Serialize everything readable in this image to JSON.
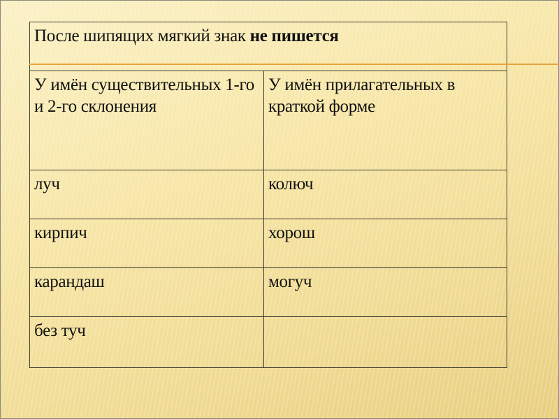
{
  "title": {
    "normal": "После шипящих мягкий знак ",
    "bold": "не пишется"
  },
  "columns": [
    "У имён существительных  1-го и 2-го склонения",
    "У имён прилагательных в краткой форме"
  ],
  "rows": [
    [
      "луч",
      "колюч"
    ],
    [
      "кирпич",
      "хорош"
    ],
    [
      "карандаш",
      "могуч"
    ],
    [
      "без туч",
      ""
    ]
  ],
  "colors": {
    "accent_line": "#e8a23a",
    "background": "#f7e6a6",
    "border": "#3a3a30"
  }
}
